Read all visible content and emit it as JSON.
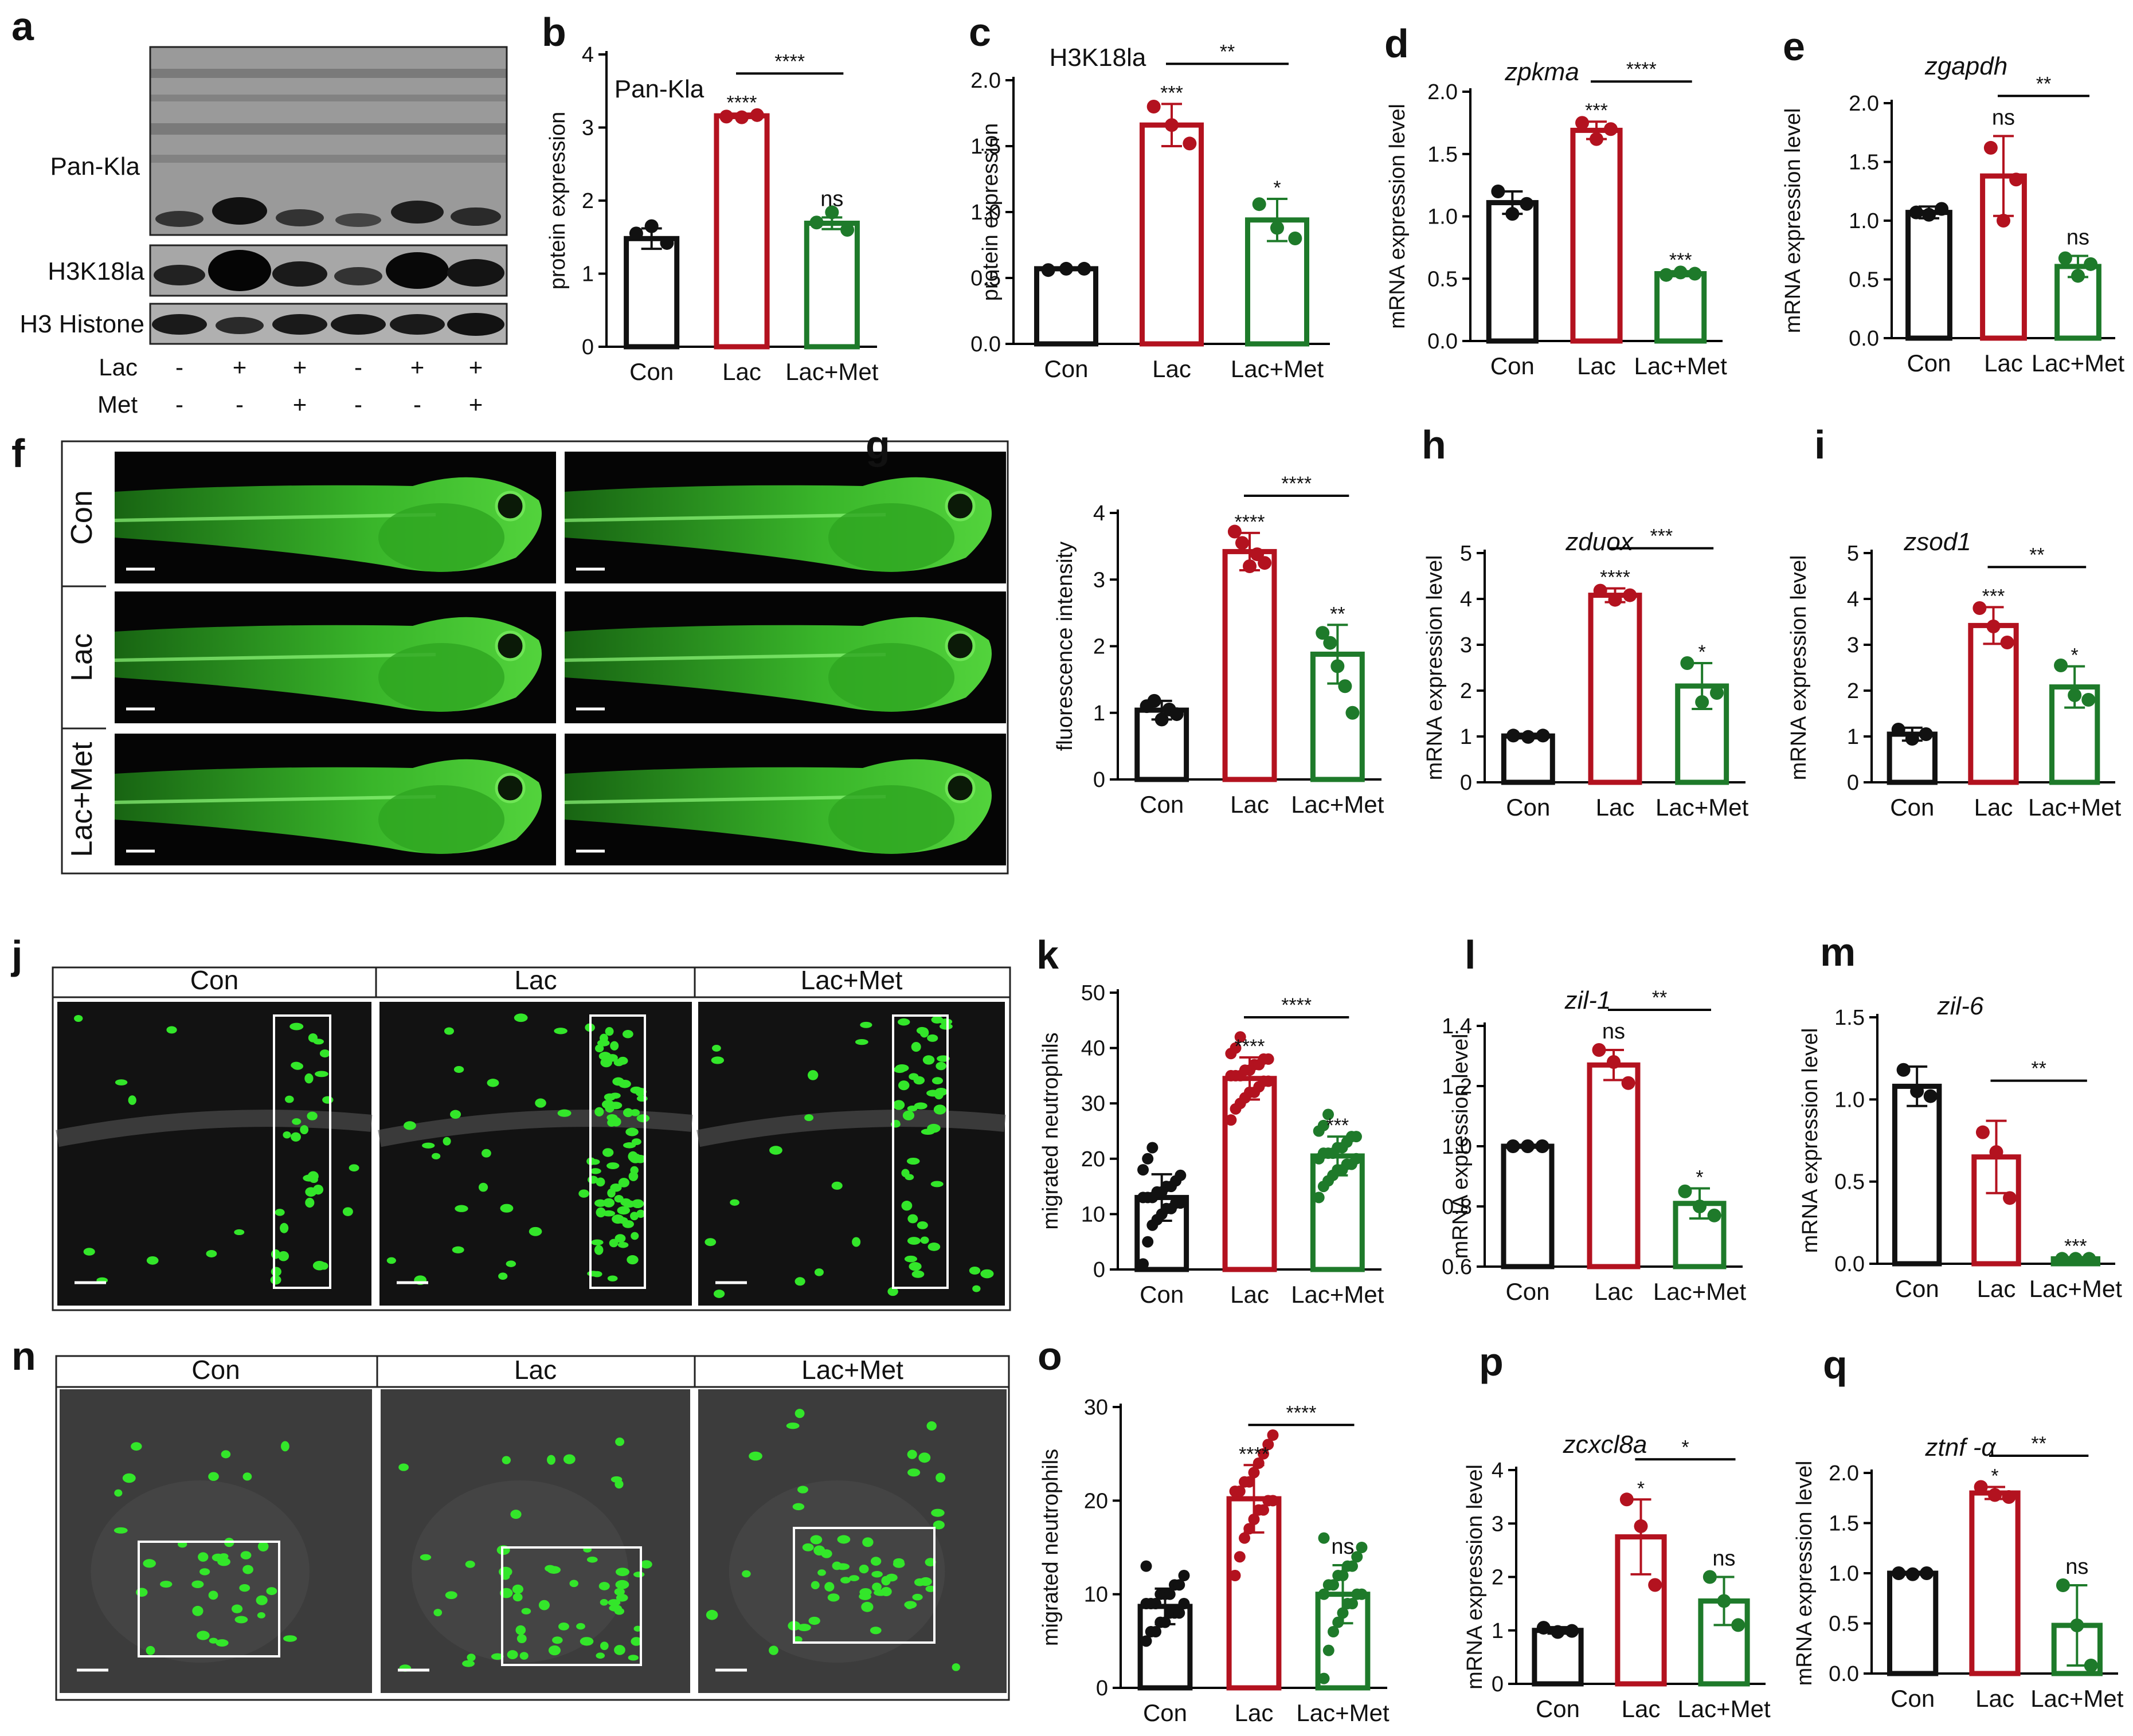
{
  "colors": {
    "con": "#111111",
    "lac": "#b3121f",
    "met": "#1e7a2a",
    "lac_point": "#b3121f",
    "met_point": "#1e7a2a",
    "zebrafish_green": "#39d12c"
  },
  "panels": {
    "a": {
      "letter": "a",
      "rows": [
        "Pan-Kla",
        "H3K18la",
        "H3 Histone"
      ],
      "treat_rows": [
        {
          "name": "Lac",
          "signs": [
            "-",
            "+",
            "+",
            "-",
            "+",
            "+"
          ]
        },
        {
          "name": "Met",
          "signs": [
            "-",
            "-",
            "+",
            "-",
            "-",
            "+"
          ]
        }
      ]
    },
    "f": {
      "letter": "f",
      "rows": [
        "Con",
        "Lac",
        "Lac+Met"
      ]
    },
    "j": {
      "letter": "j",
      "cols": [
        "Con",
        "Lac",
        "Lac+Met"
      ]
    },
    "n": {
      "letter": "n",
      "cols": [
        "Con",
        "Lac",
        "Lac+Met"
      ]
    }
  },
  "chart_data": [
    {
      "id": "b",
      "letter": "b",
      "type": "bar",
      "title": "Pan-Kla",
      "title_italic": false,
      "ylabel": "protein expression",
      "ylim": [
        0,
        4
      ],
      "yticks": [
        0,
        1,
        2,
        3,
        4
      ],
      "ytick_labels": [
        "0",
        "1",
        "2",
        "3",
        "4"
      ],
      "categories": [
        "Con",
        "Lac",
        "Lac+Met"
      ],
      "values": [
        1.48,
        3.16,
        1.69
      ],
      "errors": [
        0.14,
        0.03,
        0.08
      ],
      "points": [
        [
          1.55,
          1.65,
          1.42
        ],
        [
          3.15,
          3.14,
          3.17
        ],
        [
          1.7,
          1.84,
          1.6
        ]
      ],
      "sig_above": [
        "",
        "****",
        "ns"
      ],
      "brackets": [
        {
          "from": 1,
          "to": 2,
          "label": "****"
        }
      ]
    },
    {
      "id": "c",
      "letter": "c",
      "type": "bar",
      "title": "H3K18la",
      "title_italic": false,
      "ylabel": "protein expression",
      "ylim": [
        0,
        2.0
      ],
      "yticks": [
        0,
        0.5,
        1.0,
        1.5,
        2.0
      ],
      "ytick_labels": [
        "0.0",
        "0.5",
        "1.0",
        "1.5",
        "2.0"
      ],
      "categories": [
        "Con",
        "Lac",
        "Lac+Met"
      ],
      "values": [
        0.57,
        1.66,
        0.94
      ],
      "errors": [
        0.01,
        0.16,
        0.16
      ],
      "points": [
        [
          0.56,
          0.57,
          0.57
        ],
        [
          1.8,
          1.66,
          1.52
        ],
        [
          1.06,
          0.88,
          0.8
        ]
      ],
      "sig_above": [
        "",
        "***",
        "*"
      ],
      "brackets": [
        {
          "from": 1,
          "to": 2,
          "label": "**"
        }
      ]
    },
    {
      "id": "d",
      "letter": "d",
      "type": "bar",
      "title": "zpkma",
      "title_italic": true,
      "ylabel": "mRNA expression level",
      "ylim": [
        0,
        2.0
      ],
      "yticks": [
        0,
        0.5,
        1.0,
        1.5,
        2.0
      ],
      "ytick_labels": [
        "0.0",
        "0.5",
        "1.0",
        "1.5",
        "2.0"
      ],
      "categories": [
        "Con",
        "Lac",
        "Lac+Met"
      ],
      "values": [
        1.11,
        1.69,
        0.54
      ],
      "errors": [
        0.09,
        0.07,
        0.02
      ],
      "points": [
        [
          1.2,
          1.02,
          1.1
        ],
        [
          1.75,
          1.62,
          1.7
        ],
        [
          0.53,
          0.55,
          0.54
        ]
      ],
      "sig_above": [
        "",
        "***",
        "***"
      ],
      "brackets": [
        {
          "from": 1,
          "to": 2,
          "label": "****"
        }
      ]
    },
    {
      "id": "e",
      "letter": "e",
      "type": "bar",
      "title": "zgapdh",
      "title_italic": true,
      "ylabel": "mRNA expression level",
      "ylim": [
        0,
        2.0
      ],
      "yticks": [
        0,
        0.5,
        1.0,
        1.5,
        2.0
      ],
      "ytick_labels": [
        "0.0",
        "0.5",
        "1.0",
        "1.5",
        "2.0"
      ],
      "categories": [
        "Con",
        "Lac",
        "Lac+Met"
      ],
      "values": [
        1.07,
        1.38,
        0.61
      ],
      "errors": [
        0.05,
        0.34,
        0.09
      ],
      "points": [
        [
          1.07,
          1.05,
          1.1
        ],
        [
          1.62,
          1.0,
          1.35
        ],
        [
          0.68,
          0.53,
          0.63
        ]
      ],
      "sig_above": [
        "",
        "ns",
        "ns"
      ],
      "brackets": [
        {
          "from": 1,
          "to": 2,
          "label": "**"
        }
      ]
    },
    {
      "id": "g",
      "letter": "g",
      "type": "bar",
      "title": "",
      "title_italic": false,
      "ylabel": "fluorescence intensity",
      "ylim": [
        0,
        4
      ],
      "yticks": [
        0,
        1,
        2,
        3,
        4
      ],
      "ytick_labels": [
        "0",
        "1",
        "2",
        "3",
        "4"
      ],
      "categories": [
        "Con",
        "Lac",
        "Lac+Met"
      ],
      "values": [
        1.04,
        3.42,
        1.88
      ],
      "errors": [
        0.14,
        0.28,
        0.44
      ],
      "points": [
        [
          1.1,
          1.18,
          0.9,
          1.05,
          0.98
        ],
        [
          3.72,
          3.55,
          3.2,
          3.38,
          3.25
        ],
        [
          2.2,
          2.05,
          1.7,
          1.4,
          1.0
        ]
      ],
      "sig_above": [
        "",
        "****",
        "**"
      ],
      "brackets": [
        {
          "from": 1,
          "to": 2,
          "label": "****"
        }
      ]
    },
    {
      "id": "h",
      "letter": "h",
      "type": "bar",
      "title": "zduox",
      "title_italic": true,
      "ylabel": "mRNA expression level",
      "ylim": [
        0,
        5
      ],
      "yticks": [
        0,
        1,
        2,
        3,
        4,
        5
      ],
      "ytick_labels": [
        "0",
        "1",
        "2",
        "3",
        "4",
        "5"
      ],
      "categories": [
        "Con",
        "Lac",
        "Lac+Met"
      ],
      "values": [
        1.01,
        4.08,
        2.1
      ],
      "errors": [
        0.05,
        0.15,
        0.5
      ],
      "points": [
        [
          1.02,
          0.99,
          1.02
        ],
        [
          4.18,
          3.98,
          4.08
        ],
        [
          2.6,
          1.75,
          1.95
        ]
      ],
      "sig_above": [
        "",
        "****",
        "*"
      ],
      "brackets": [
        {
          "from": 1,
          "to": 2,
          "label": "***"
        }
      ]
    },
    {
      "id": "i",
      "letter": "i",
      "type": "bar",
      "title": "zsod1",
      "title_italic": true,
      "ylabel": "mRNA expression level",
      "ylim": [
        0,
        5
      ],
      "yticks": [
        0,
        1,
        2,
        3,
        4,
        5
      ],
      "ytick_labels": [
        "0",
        "1",
        "2",
        "3",
        "4",
        "5"
      ],
      "categories": [
        "Con",
        "Lac",
        "Lac+Met"
      ],
      "values": [
        1.05,
        3.42,
        2.08
      ],
      "errors": [
        0.14,
        0.4,
        0.45
      ],
      "points": [
        [
          1.15,
          0.95,
          1.05
        ],
        [
          3.8,
          3.4,
          3.05
        ],
        [
          2.55,
          1.9,
          1.8
        ]
      ],
      "sig_above": [
        "",
        "***",
        "*"
      ],
      "brackets": [
        {
          "from": 1,
          "to": 2,
          "label": "**"
        }
      ]
    },
    {
      "id": "k",
      "letter": "k",
      "type": "bar",
      "title": "",
      "title_italic": false,
      "ylabel": "migrated neutrophils",
      "ylim": [
        0,
        50
      ],
      "yticks": [
        0,
        10,
        20,
        30,
        40,
        50
      ],
      "ytick_labels": [
        "0",
        "10",
        "20",
        "30",
        "40",
        "50"
      ],
      "categories": [
        "Con",
        "Lac",
        "Lac+Met"
      ],
      "values": [
        13,
        34.5,
        20.5
      ],
      "errors": [
        4.2,
        3.8,
        3.5
      ],
      "points": [
        [
          1,
          5,
          8,
          9,
          10,
          11,
          11,
          12,
          12,
          13,
          13,
          13,
          14,
          14,
          15,
          15,
          16,
          17,
          18,
          20,
          22
        ],
        [
          27,
          29,
          30,
          31,
          32,
          32,
          33,
          34,
          34,
          35,
          35,
          35,
          36,
          36,
          37,
          37,
          38,
          38,
          39,
          40,
          42
        ],
        [
          13,
          15,
          16,
          17,
          18,
          18,
          19,
          19,
          20,
          20,
          21,
          21,
          21,
          22,
          22,
          23,
          24,
          24,
          25,
          26,
          28
        ]
      ],
      "sig_above": [
        "",
        "****",
        "***"
      ],
      "brackets": [
        {
          "from": 1,
          "to": 2,
          "label": "****"
        }
      ]
    },
    {
      "id": "l",
      "letter": "l",
      "type": "bar",
      "title": "zil-1",
      "title_italic": true,
      "ylabel": "mRNA expression level",
      "ylim": [
        0.6,
        1.4
      ],
      "yticks": [
        0.6,
        0.8,
        1.0,
        1.2,
        1.4
      ],
      "ytick_labels": [
        "0.6",
        "0.8",
        "1.0",
        "1.2",
        "1.4"
      ],
      "categories": [
        "Con",
        "Lac",
        "Lac+Met"
      ],
      "values": [
        1.0,
        1.27,
        0.81
      ],
      "errors": [
        0.005,
        0.05,
        0.05
      ],
      "points": [
        [
          1.0,
          1.0,
          1.0
        ],
        [
          1.32,
          1.28,
          1.21
        ],
        [
          0.85,
          0.8,
          0.77
        ]
      ],
      "sig_above": [
        "",
        "ns",
        "*"
      ],
      "brackets": [
        {
          "from": 1,
          "to": 2,
          "label": "**"
        }
      ]
    },
    {
      "id": "m",
      "letter": "m",
      "type": "bar",
      "title": "zil-6",
      "title_italic": true,
      "ylabel": "mRNA expression level",
      "ylim": [
        0,
        1.5
      ],
      "yticks": [
        0,
        0.5,
        1.0,
        1.5
      ],
      "ytick_labels": [
        "0.0",
        "0.5",
        "1.0",
        "1.5"
      ],
      "categories": [
        "Con",
        "Lac",
        "Lac+Met"
      ],
      "values": [
        1.08,
        0.65,
        0.03
      ],
      "errors": [
        0.12,
        0.22,
        0.01
      ],
      "points": [
        [
          1.18,
          1.05,
          1.02
        ],
        [
          0.8,
          0.68,
          0.4
        ],
        [
          0.03,
          0.03,
          0.03
        ]
      ],
      "sig_above": [
        "",
        "",
        "***"
      ],
      "brackets": [
        {
          "from": 1,
          "to": 2,
          "label": "**"
        }
      ]
    },
    {
      "id": "o",
      "letter": "o",
      "type": "bar",
      "title": "",
      "title_italic": false,
      "ylabel": "migrated neutrophils",
      "ylim": [
        0,
        30
      ],
      "yticks": [
        0,
        10,
        20,
        30
      ],
      "ytick_labels": [
        "0",
        "10",
        "20",
        "30"
      ],
      "categories": [
        "Con",
        "Lac",
        "Lac+Met"
      ],
      "values": [
        8.7,
        20.2,
        10.0
      ],
      "errors": [
        1.9,
        3.6,
        3.1
      ],
      "points": [
        [
          5,
          6,
          6,
          7,
          7,
          8,
          8,
          8,
          9,
          9,
          9,
          9,
          10,
          10,
          10,
          11,
          11,
          12,
          13
        ],
        [
          12,
          14,
          16,
          17,
          18,
          19,
          19,
          20,
          20,
          21,
          21,
          22,
          22,
          23,
          24,
          25,
          26,
          27
        ],
        [
          1,
          4,
          6,
          7,
          8,
          9,
          9,
          10,
          10,
          10,
          11,
          11,
          12,
          12,
          13,
          13,
          14,
          15,
          16
        ]
      ],
      "sig_above": [
        "",
        "****",
        "ns"
      ],
      "brackets": [
        {
          "from": 1,
          "to": 2,
          "label": "****"
        }
      ]
    },
    {
      "id": "p",
      "letter": "p",
      "type": "bar",
      "title": "zcxcl8a",
      "title_italic": true,
      "ylabel": "mRNA expression level",
      "ylim": [
        0,
        4
      ],
      "yticks": [
        0,
        1,
        2,
        3,
        4
      ],
      "ytick_labels": [
        "0",
        "1",
        "2",
        "3",
        "4"
      ],
      "categories": [
        "Con",
        "Lac",
        "Lac+Met"
      ],
      "values": [
        1.0,
        2.75,
        1.55
      ],
      "errors": [
        0.06,
        0.7,
        0.45
      ],
      "points": [
        [
          1.05,
          0.97,
          0.99
        ],
        [
          3.45,
          2.95,
          1.85
        ],
        [
          2.0,
          1.55,
          1.1
        ]
      ],
      "sig_above": [
        "",
        "*",
        "ns"
      ],
      "brackets": [
        {
          "from": 1,
          "to": 2,
          "label": "*"
        }
      ]
    },
    {
      "id": "q",
      "letter": "q",
      "type": "bar",
      "title": "ztnf -α",
      "title_italic": true,
      "ylabel": "mRNA expression level",
      "ylim": [
        0,
        2.0
      ],
      "yticks": [
        0,
        0.5,
        1.0,
        1.5,
        2.0
      ],
      "ytick_labels": [
        "0.0",
        "0.5",
        "1.0",
        "1.5",
        "2.0"
      ],
      "categories": [
        "Con",
        "Lac",
        "Lac+Met"
      ],
      "values": [
        1.0,
        1.8,
        0.48
      ],
      "errors": [
        0.01,
        0.06,
        0.4
      ],
      "points": [
        [
          1.0,
          0.99,
          1.0
        ],
        [
          1.86,
          1.78,
          1.76
        ],
        [
          0.88,
          0.48,
          0.08
        ]
      ],
      "sig_above": [
        "",
        "*",
        "ns"
      ],
      "brackets": [
        {
          "from": 1,
          "to": 2,
          "label": "**"
        }
      ]
    }
  ]
}
